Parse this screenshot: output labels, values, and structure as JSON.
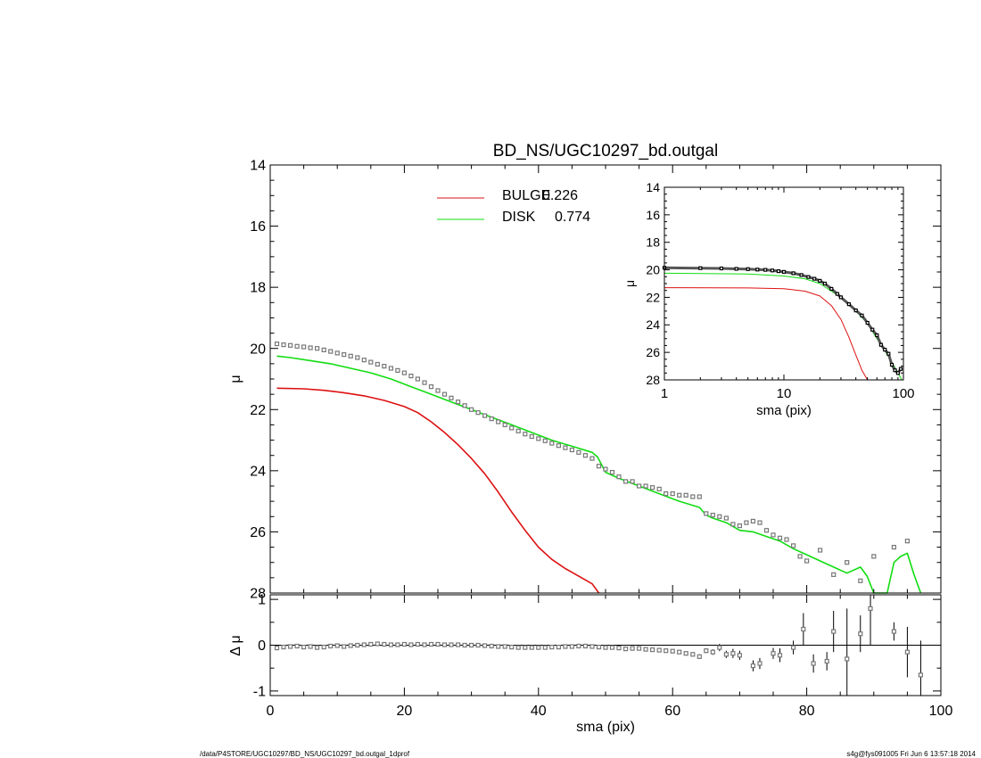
{
  "colors": {
    "bulge": "#dd1111",
    "disk": "#11dd11",
    "data": "#000000",
    "marker": "#777777"
  },
  "footer": {
    "left": "/data/P4STORE/UGC10297/BD_NS/UGC10297_bd.outgal_1dprof",
    "right": "s4g@fys091005  Fri Jun  6 13:57:18 2014"
  },
  "chart_data": [
    {
      "type": "scatter",
      "title": "BD_NS/UGC10297_bd.outgal",
      "xlabel": "",
      "ylabel": "μ",
      "xlim": [
        0,
        100
      ],
      "ylim": [
        28,
        14
      ],
      "yticks": [
        "14",
        "16",
        "18",
        "20",
        "22",
        "24",
        "26",
        "28"
      ],
      "legend": {
        "placement": "top-center",
        "entries": [
          {
            "name": "BULGE",
            "value": "0.226"
          },
          {
            "name": "DISK",
            "value": "0.774"
          }
        ]
      },
      "series": [
        {
          "name": "BULGE",
          "style": "line",
          "color": "#dd1111",
          "x": [
            1,
            5,
            8,
            11,
            14,
            17,
            20,
            22,
            24,
            26,
            28,
            30,
            32,
            34,
            36,
            38,
            40,
            42,
            44,
            46,
            48,
            49
          ],
          "y": [
            21.3,
            21.32,
            21.37,
            21.45,
            21.55,
            21.7,
            21.9,
            22.1,
            22.4,
            22.75,
            23.15,
            23.6,
            24.1,
            24.7,
            25.35,
            25.95,
            26.5,
            26.9,
            27.2,
            27.45,
            27.7,
            28.05
          ]
        },
        {
          "name": "DISK",
          "style": "line",
          "color": "#11dd11",
          "x": [
            1,
            3,
            6,
            9,
            12,
            15,
            18,
            21,
            24,
            27,
            30,
            33,
            36,
            39,
            42,
            45,
            48,
            48.8,
            50,
            52,
            55,
            58,
            61,
            64,
            65,
            66,
            68,
            70,
            72,
            74,
            76,
            78,
            80,
            82,
            84,
            86,
            88,
            89,
            90,
            92,
            93,
            94,
            95,
            96,
            97
          ],
          "y": [
            20.25,
            20.3,
            20.4,
            20.5,
            20.65,
            20.8,
            21.0,
            21.25,
            21.5,
            21.75,
            22.0,
            22.25,
            22.5,
            22.75,
            23.0,
            23.2,
            23.4,
            23.55,
            24.05,
            24.25,
            24.5,
            24.75,
            25.0,
            25.2,
            25.45,
            25.55,
            25.7,
            25.95,
            26.0,
            26.15,
            26.3,
            26.55,
            26.75,
            26.95,
            27.15,
            27.35,
            27.15,
            27.45,
            28.05,
            28.05,
            27.0,
            26.8,
            26.7,
            27.4,
            28.05
          ]
        },
        {
          "name": "",
          "style": "markers",
          "color": "#777777",
          "x": [
            1,
            2,
            3,
            4,
            5,
            6,
            7,
            8,
            9,
            10,
            11,
            12,
            13,
            14,
            15,
            16,
            17,
            18,
            19,
            20,
            21,
            22,
            23,
            24,
            25,
            26,
            27,
            28,
            29,
            30,
            31,
            32,
            33,
            34,
            35,
            36,
            37,
            38,
            39,
            40,
            41,
            42,
            43,
            44,
            45,
            46,
            47,
            48,
            49,
            50,
            51,
            52,
            53,
            54,
            55,
            56,
            57,
            58,
            59,
            60,
            61,
            62,
            63,
            64,
            65,
            66,
            67,
            68,
            69,
            70,
            71,
            72,
            73,
            74,
            75,
            76,
            77,
            78,
            79,
            80,
            82,
            84,
            86,
            88,
            90,
            93,
            95
          ],
          "y": [
            19.85,
            19.88,
            19.9,
            19.93,
            19.95,
            19.98,
            20.0,
            20.05,
            20.1,
            20.15,
            20.2,
            20.25,
            20.3,
            20.38,
            20.45,
            20.52,
            20.58,
            20.65,
            20.72,
            20.8,
            20.9,
            21.0,
            21.12,
            21.25,
            21.38,
            21.5,
            21.62,
            21.75,
            21.87,
            22.0,
            22.1,
            22.2,
            22.3,
            22.4,
            22.5,
            22.6,
            22.7,
            22.8,
            22.88,
            22.95,
            23.02,
            23.1,
            23.18,
            23.25,
            23.32,
            23.4,
            23.5,
            23.6,
            23.85,
            23.95,
            24.05,
            24.2,
            24.35,
            24.35,
            24.5,
            24.5,
            24.55,
            24.6,
            24.75,
            24.75,
            24.8,
            24.8,
            24.85,
            24.85,
            25.4,
            25.45,
            25.5,
            25.55,
            25.75,
            25.8,
            25.7,
            25.65,
            25.7,
            25.95,
            26.1,
            26.2,
            26.25,
            26.45,
            26.8,
            26.95,
            26.6,
            27.4,
            27.0,
            27.6,
            26.8,
            26.5,
            26.3
          ]
        }
      ]
    },
    {
      "type": "scatter",
      "title": "",
      "xlabel": "sma (pix)",
      "ylabel": "μ",
      "xscale": "log",
      "xlim": [
        1,
        100
      ],
      "ylim": [
        28,
        14
      ],
      "xticks": [
        "1",
        "10",
        "100"
      ],
      "yticks": [
        "14",
        "16",
        "18",
        "20",
        "22",
        "24",
        "26",
        "28"
      ],
      "series": [
        {
          "name": "BULGE",
          "style": "line",
          "color": "#dd1111",
          "x": [
            1,
            5,
            10,
            15,
            20,
            25,
            30,
            35,
            40,
            45,
            50
          ],
          "y": [
            21.3,
            21.32,
            21.37,
            21.55,
            21.9,
            22.6,
            23.6,
            24.9,
            26.2,
            27.3,
            28.0
          ]
        },
        {
          "name": "DISK",
          "style": "line",
          "color": "#11dd11",
          "x": [
            1,
            5,
            10,
            15,
            20,
            30,
            40,
            50,
            60,
            70,
            80,
            90,
            97
          ],
          "y": [
            20.25,
            20.3,
            20.45,
            20.65,
            21.0,
            22.0,
            23.0,
            23.9,
            25.0,
            25.9,
            26.7,
            27.5,
            28.0
          ]
        },
        {
          "name": "",
          "style": "markers",
          "color": "#000000",
          "x": [
            1,
            2,
            3,
            4,
            5,
            6,
            7,
            8,
            9,
            10,
            12,
            14,
            16,
            18,
            20,
            22,
            25,
            28,
            30,
            35,
            40,
            45,
            50,
            55,
            60,
            65,
            70,
            75,
            80,
            85,
            90,
            95
          ],
          "y": [
            19.85,
            19.88,
            19.9,
            19.93,
            19.95,
            19.98,
            20.0,
            20.05,
            20.1,
            20.15,
            20.25,
            20.38,
            20.52,
            20.65,
            20.8,
            21.0,
            21.38,
            21.75,
            22.0,
            22.5,
            22.95,
            23.32,
            23.85,
            24.35,
            24.75,
            25.45,
            25.8,
            26.1,
            26.9,
            27.3,
            27.5,
            27.2
          ]
        }
      ]
    },
    {
      "type": "scatter",
      "title": "",
      "xlabel": "sma (pix)",
      "ylabel": "Δ μ",
      "xlim": [
        0,
        100
      ],
      "ylim": [
        -1.1,
        1.1
      ],
      "xticks": [
        "0",
        "20",
        "40",
        "60",
        "80",
        "100"
      ],
      "yticks": [
        "-1",
        "0",
        "1"
      ],
      "series": [
        {
          "name": "",
          "style": "markers-errorbars",
          "color": "#777777",
          "x": [
            1,
            2,
            3,
            4,
            5,
            6,
            7,
            8,
            9,
            10,
            11,
            12,
            13,
            14,
            15,
            16,
            17,
            18,
            19,
            20,
            21,
            22,
            23,
            24,
            25,
            26,
            27,
            28,
            29,
            30,
            31,
            32,
            33,
            34,
            35,
            36,
            37,
            38,
            39,
            40,
            41,
            42,
            43,
            44,
            45,
            46,
            47,
            48,
            49,
            50,
            51,
            52,
            53,
            54,
            55,
            56,
            57,
            58,
            59,
            60,
            61,
            62,
            63,
            64,
            65,
            66,
            67,
            68,
            69,
            70,
            72,
            73,
            75,
            76,
            78,
            79.5,
            81,
            83,
            84,
            86,
            88,
            89.5,
            93,
            95,
            97
          ],
          "y": [
            -0.06,
            -0.04,
            -0.03,
            -0.02,
            -0.04,
            -0.03,
            -0.05,
            -0.04,
            -0.02,
            -0.01,
            -0.03,
            -0.01,
            0.0,
            0.01,
            0.02,
            0.03,
            0.02,
            0.01,
            0.01,
            0.02,
            0.01,
            0.02,
            0.01,
            0.02,
            0.02,
            0.01,
            0.01,
            0.01,
            0.0,
            0.0,
            0.0,
            -0.01,
            -0.02,
            -0.03,
            -0.03,
            -0.04,
            -0.05,
            -0.05,
            -0.05,
            -0.05,
            -0.05,
            -0.04,
            -0.04,
            -0.03,
            -0.03,
            -0.02,
            -0.02,
            -0.03,
            -0.04,
            -0.05,
            -0.05,
            -0.06,
            -0.08,
            -0.07,
            -0.07,
            -0.09,
            -0.1,
            -0.11,
            -0.12,
            -0.13,
            -0.15,
            -0.18,
            -0.2,
            -0.25,
            -0.12,
            -0.15,
            -0.05,
            -0.2,
            -0.18,
            -0.22,
            -0.45,
            -0.4,
            -0.18,
            -0.22,
            -0.05,
            0.35,
            -0.4,
            -0.35,
            0.3,
            -0.3,
            0.25,
            0.8,
            0.3,
            -0.15,
            -0.65
          ],
          "err": [
            0.02,
            0.02,
            0.02,
            0.02,
            0.02,
            0.02,
            0.02,
            0.02,
            0.02,
            0.02,
            0.02,
            0.02,
            0.02,
            0.02,
            0.02,
            0.02,
            0.02,
            0.02,
            0.02,
            0.02,
            0.02,
            0.02,
            0.02,
            0.02,
            0.02,
            0.02,
            0.02,
            0.02,
            0.02,
            0.02,
            0.02,
            0.02,
            0.02,
            0.02,
            0.02,
            0.02,
            0.02,
            0.02,
            0.02,
            0.02,
            0.02,
            0.02,
            0.02,
            0.02,
            0.02,
            0.02,
            0.02,
            0.02,
            0.02,
            0.02,
            0.02,
            0.02,
            0.02,
            0.02,
            0.02,
            0.02,
            0.02,
            0.02,
            0.02,
            0.02,
            0.03,
            0.03,
            0.03,
            0.05,
            0.05,
            0.06,
            0.08,
            0.08,
            0.1,
            0.1,
            0.12,
            0.12,
            0.12,
            0.15,
            0.15,
            0.35,
            0.2,
            0.2,
            0.45,
            1.1,
            0.4,
            0.8,
            0.2,
            0.55,
            0.75
          ]
        }
      ]
    }
  ]
}
